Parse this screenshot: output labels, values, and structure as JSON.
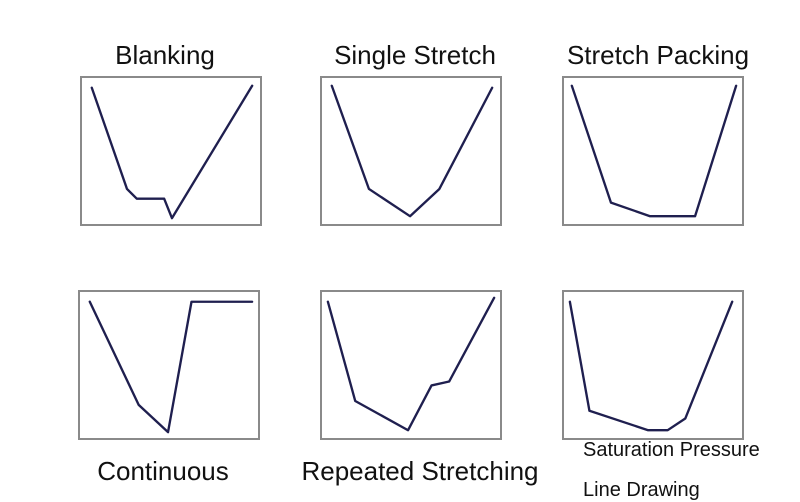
{
  "panels": [
    {
      "id": "blanking",
      "title": "Blanking"
    },
    {
      "id": "single-stretch",
      "title": "Single Stretch"
    },
    {
      "id": "stretch-packing",
      "title": "Stretch Packing"
    },
    {
      "id": "continuous",
      "title": "Continuous"
    },
    {
      "id": "repeated-stretching",
      "title": "Repeated Stretching"
    },
    {
      "id": "saturation-pressure",
      "title_line1": "Saturation Pressure",
      "title_line2": "Line Drawing"
    }
  ],
  "colors": {
    "curve": "#1f1f4f",
    "frame": "#8a8a8a"
  }
}
